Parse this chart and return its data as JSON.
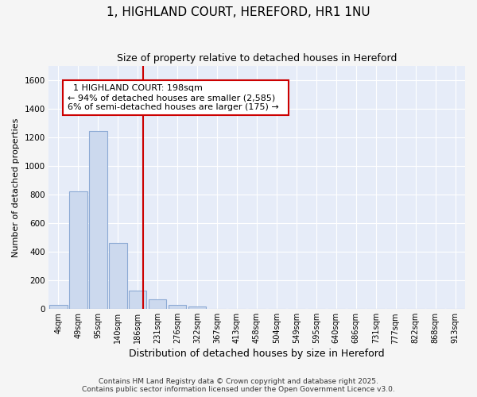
{
  "title": "1, HIGHLAND COURT, HEREFORD, HR1 1NU",
  "subtitle": "Size of property relative to detached houses in Hereford",
  "xlabel": "Distribution of detached houses by size in Hereford",
  "ylabel": "Number of detached properties",
  "footer_line1": "Contains HM Land Registry data © Crown copyright and database right 2025.",
  "footer_line2": "Contains public sector information licensed under the Open Government Licence v3.0.",
  "bar_color": "#ccd9ee",
  "bar_edgecolor": "#8caad4",
  "bg_color": "#e6ecf8",
  "grid_color": "#ffffff",
  "categories": [
    "4sqm",
    "49sqm",
    "95sqm",
    "140sqm",
    "186sqm",
    "231sqm",
    "276sqm",
    "322sqm",
    "367sqm",
    "413sqm",
    "458sqm",
    "504sqm",
    "549sqm",
    "595sqm",
    "640sqm",
    "686sqm",
    "731sqm",
    "777sqm",
    "822sqm",
    "868sqm",
    "913sqm"
  ],
  "values": [
    25,
    820,
    1245,
    460,
    130,
    65,
    25,
    15,
    0,
    0,
    0,
    0,
    0,
    0,
    0,
    0,
    0,
    0,
    0,
    0,
    0
  ],
  "ylim": [
    0,
    1700
  ],
  "yticks": [
    0,
    200,
    400,
    600,
    800,
    1000,
    1200,
    1400,
    1600
  ],
  "property_line_x": 4.28,
  "property_label": "1 HIGHLAND COURT: 198sqm",
  "annotation_line1": "← 94% of detached houses are smaller (2,585)",
  "annotation_line2": "6% of semi-detached houses are larger (175) →",
  "vline_color": "#cc0000",
  "annotation_box_facecolor": "#ffffff",
  "annotation_box_edgecolor": "#cc0000",
  "fig_facecolor": "#f5f5f5",
  "title_fontsize": 11,
  "subtitle_fontsize": 9,
  "ylabel_fontsize": 8,
  "xlabel_fontsize": 9,
  "tick_fontsize": 7,
  "footer_fontsize": 6.5,
  "annot_fontsize": 8
}
